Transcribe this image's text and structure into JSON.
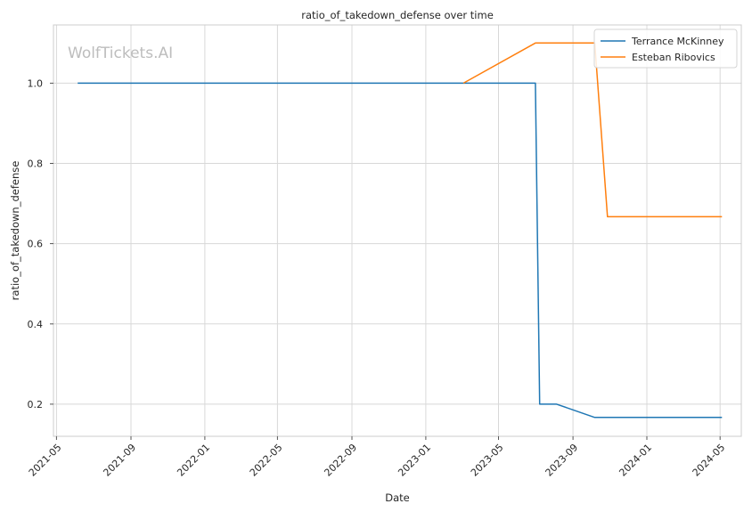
{
  "chart_data": {
    "type": "line",
    "title": "ratio_of_takedown_defense over time",
    "xlabel": "Date",
    "ylabel": "ratio_of_takedown_defense",
    "watermark": "WolfTickets.AI",
    "x_ticks": [
      "2021-05",
      "2021-09",
      "2022-01",
      "2022-05",
      "2022-09",
      "2023-01",
      "2023-05",
      "2023-09",
      "2024-01",
      "2024-05"
    ],
    "y_ticks": [
      "0.2",
      "0.4",
      "0.6",
      "0.8",
      "1.0"
    ],
    "xlim": [
      "2021-04-26",
      "2024-06-05"
    ],
    "ylim": [
      0.12,
      1.145
    ],
    "grid": true,
    "legend_position": "top-right",
    "series": [
      {
        "name": "Terrance McKinney",
        "color": "#1f77b4",
        "points": [
          {
            "x": "2021-06-05",
            "y": 1.0
          },
          {
            "x": "2023-07-01",
            "y": 1.0
          },
          {
            "x": "2023-07-08",
            "y": 0.2
          },
          {
            "x": "2023-08-05",
            "y": 0.2
          },
          {
            "x": "2023-10-07",
            "y": 0.167
          },
          {
            "x": "2024-05-04",
            "y": 0.167
          }
        ]
      },
      {
        "name": "Esteban Ribovics",
        "color": "#ff7f0e",
        "points": [
          {
            "x": "2023-03-04",
            "y": 1.0
          },
          {
            "x": "2023-07-01",
            "y": 1.1
          },
          {
            "x": "2023-10-07",
            "y": 1.1
          },
          {
            "x": "2023-10-28",
            "y": 0.667
          },
          {
            "x": "2024-05-04",
            "y": 0.667
          }
        ]
      }
    ]
  }
}
